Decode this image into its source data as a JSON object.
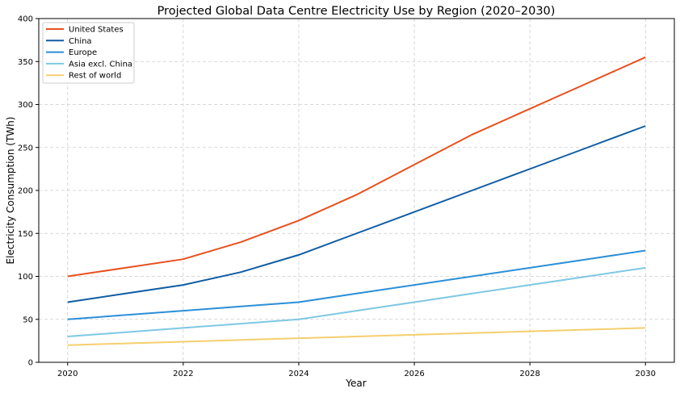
{
  "chart_data": {
    "type": "line",
    "title": "Projected Global Data Centre Electricity Use by Region (2020–2030)",
    "xlabel": "Year",
    "ylabel": "Electricity Consumption (TWh)",
    "xlim": [
      2019.5,
      2030.5
    ],
    "ylim": [
      0,
      400
    ],
    "xticks": [
      2020,
      2022,
      2024,
      2026,
      2028,
      2030
    ],
    "yticks": [
      0,
      50,
      100,
      150,
      200,
      250,
      300,
      350,
      400
    ],
    "grid": true,
    "legend_placement": "top-left",
    "x": [
      2020,
      2021,
      2022,
      2023,
      2024,
      2025,
      2026,
      2027,
      2028,
      2029,
      2030
    ],
    "series": [
      {
        "name": "United States",
        "color": "#e8501e",
        "values": [
          100,
          110,
          120,
          140,
          165,
          195,
          230,
          265,
          295,
          325,
          355
        ]
      },
      {
        "name": "China",
        "color": "#0f5ca3",
        "values": [
          70,
          80,
          90,
          105,
          125,
          150,
          175,
          200,
          225,
          250,
          275
        ]
      },
      {
        "name": "Europe",
        "color": "#2b8fd8",
        "values": [
          50,
          55,
          60,
          65,
          70,
          80,
          90,
          100,
          110,
          120,
          130
        ]
      },
      {
        "name": "Asia excl. China",
        "color": "#7ec8e3",
        "values": [
          30,
          35,
          40,
          45,
          50,
          60,
          70,
          80,
          90,
          100,
          110
        ]
      },
      {
        "name": "Rest of world",
        "color": "#f5cf6e",
        "values": [
          20,
          22,
          24,
          26,
          28,
          30,
          32,
          34,
          36,
          38,
          40
        ]
      }
    ]
  }
}
